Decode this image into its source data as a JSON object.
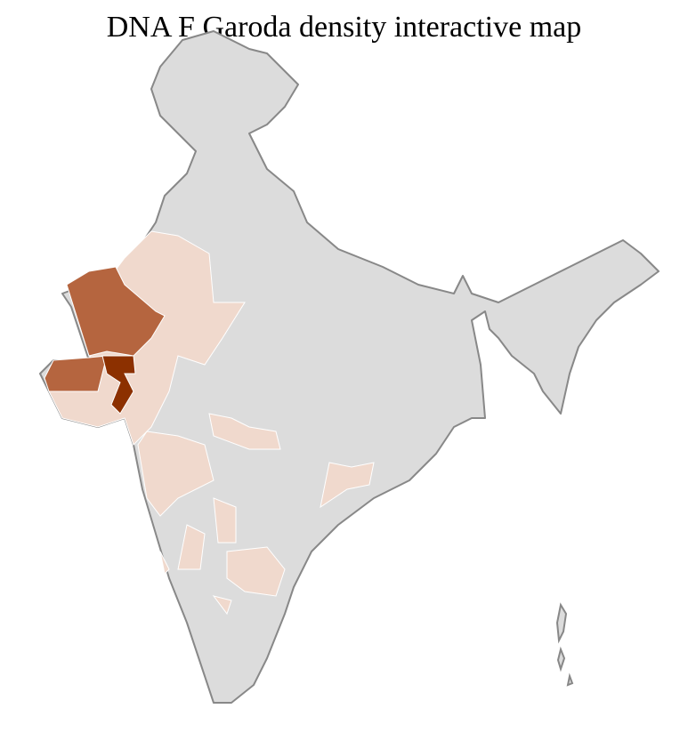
{
  "title": "DNA F Garoda density interactive map",
  "map": {
    "region": "India districts",
    "legend_shown": false,
    "colors": {
      "no_data": "#dcdcdc",
      "low": "#f0d9cd",
      "medium": "#b5653f",
      "high": "#8c3000",
      "district_border": "#ffffff",
      "state_border": "#888888"
    },
    "density_levels": [
      {
        "level": "high",
        "areas": [
          "Central Gujarat districts"
        ]
      },
      {
        "level": "medium",
        "areas": [
          "Kutch",
          "North Gujarat",
          "Saurashtra north"
        ]
      },
      {
        "level": "low",
        "areas": [
          "Rajasthan (west & south)",
          "South Gujarat",
          "Maharashtra (west)",
          "Madhya Pradesh (parts)",
          "Telangana (parts)",
          "Karnataka (parts)",
          "Andhra Pradesh (parts)"
        ]
      }
    ]
  }
}
